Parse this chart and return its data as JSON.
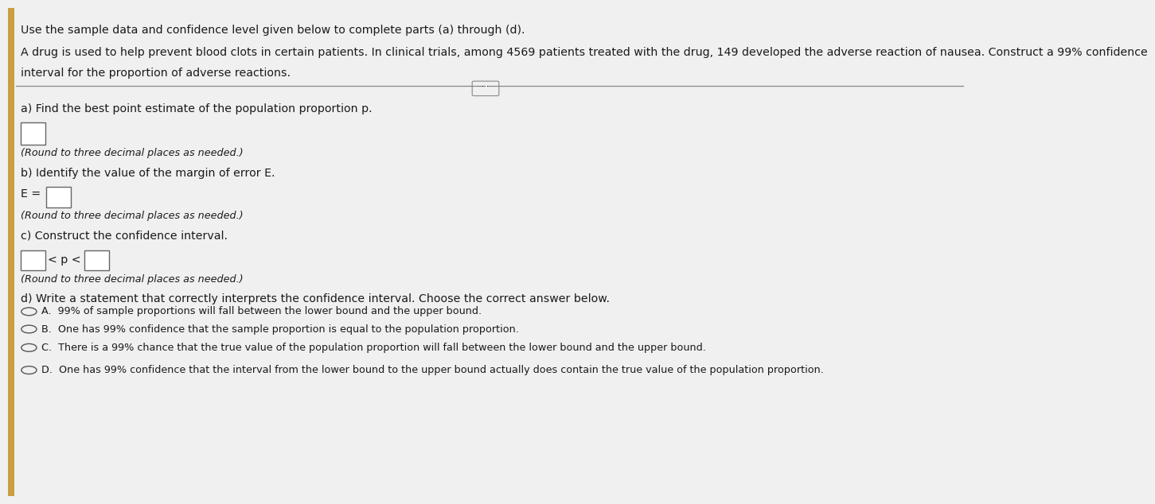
{
  "bg_color": "#f0f0f0",
  "top_text_line1": "Use the sample data and confidence level given below to complete parts (a) through (d).",
  "top_text_line2": "A drug is used to help prevent blood clots in certain patients. In clinical trials, among 4569 patients treated with the drug, 149 developed the adverse reaction of nausea. Construct a 99% confidence",
  "top_text_line3": "interval for the proportion of adverse reactions.",
  "section_a_label": "a) Find the best point estimate of the population proportion p.",
  "section_a_round": "(Round to three decimal places as needed.)",
  "section_b_label": "b) Identify the value of the margin of error E.",
  "section_b_eq": "E =",
  "section_b_round": "(Round to three decimal places as needed.)",
  "section_c_label": "c) Construct the confidence interval.",
  "section_c_interval": "< p <",
  "section_c_round": "(Round to three decimal places as needed.)",
  "section_d_label": "d) Write a statement that correctly interprets the confidence interval. Choose the correct answer below.",
  "option_a": "A.  99% of sample proportions will fall between the lower bound and the upper bound.",
  "option_b": "B.  One has 99% confidence that the sample proportion is equal to the population proportion.",
  "option_c": "C.  There is a 99% chance that the true value of the population proportion will fall between the lower bound and the upper bound.",
  "option_d": "D.  One has 99% confidence that the interval from the lower bound to the upper bound actually does contain the true value of the population proportion.",
  "dots_label": "...",
  "left_bar_color": "#c8a040",
  "text_color": "#1a1a1a",
  "separator_color": "#888888",
  "box_color": "#ffffff",
  "box_border": "#666666"
}
